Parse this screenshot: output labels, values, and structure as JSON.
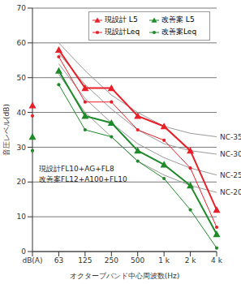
{
  "chart_data": {
    "type": "line",
    "y_label": "音圧レベル(dB)",
    "x_label": "オクターブバンド中心周波数(Hz)",
    "categories": [
      "dB(A)",
      "63",
      "125",
      "250",
      "500",
      "1 k",
      "2 k",
      "4 k"
    ],
    "ylim": [
      0,
      70
    ],
    "yticks": [
      0,
      10,
      20,
      30,
      40,
      50,
      60,
      70
    ],
    "grid": true,
    "legend": "upper right",
    "series": [
      {
        "name": "現設計 L5",
        "color": "#e8202a",
        "marker": "triangle",
        "line_style": "solid",
        "values": [
          42,
          58,
          47,
          47,
          39,
          36,
          29,
          12
        ]
      },
      {
        "name": "改善案 L5",
        "color": "#1e8a2a",
        "marker": "triangle",
        "line_style": "solid",
        "values": [
          33,
          52,
          39,
          37,
          29,
          25,
          19,
          5
        ]
      },
      {
        "name": "現設計Leq",
        "color": "#e8202a",
        "marker": "circle",
        "line_style": "solid",
        "values": [
          39,
          56,
          43,
          43,
          35,
          32,
          24,
          7
        ]
      },
      {
        "name": "改善案Leq",
        "color": "#1e8a2a",
        "marker": "circle",
        "line_style": "solid",
        "values": [
          29,
          48,
          35,
          33,
          26,
          21,
          12,
          1
        ]
      }
    ],
    "reference_curves": [
      {
        "name": "NC-35",
        "color": "#9a9a9a",
        "values": [
          null,
          60,
          52,
          45,
          40,
          36,
          34,
          33
        ]
      },
      {
        "name": "NC-30",
        "color": "#9a9a9a",
        "values": [
          null,
          57,
          48,
          41,
          35,
          31,
          29,
          28
        ]
      },
      {
        "name": "NC-25",
        "color": "#9a9a9a",
        "values": [
          null,
          54,
          44,
          37,
          31,
          27,
          24,
          22
        ]
      },
      {
        "name": "NC-20",
        "color": "#9a9a9a",
        "values": [
          null,
          51,
          40,
          33,
          26,
          22,
          19,
          17
        ]
      }
    ],
    "annotations": [
      "現設計FL10+AG+FL8",
      "改善案FL12+A100+FL10"
    ]
  }
}
